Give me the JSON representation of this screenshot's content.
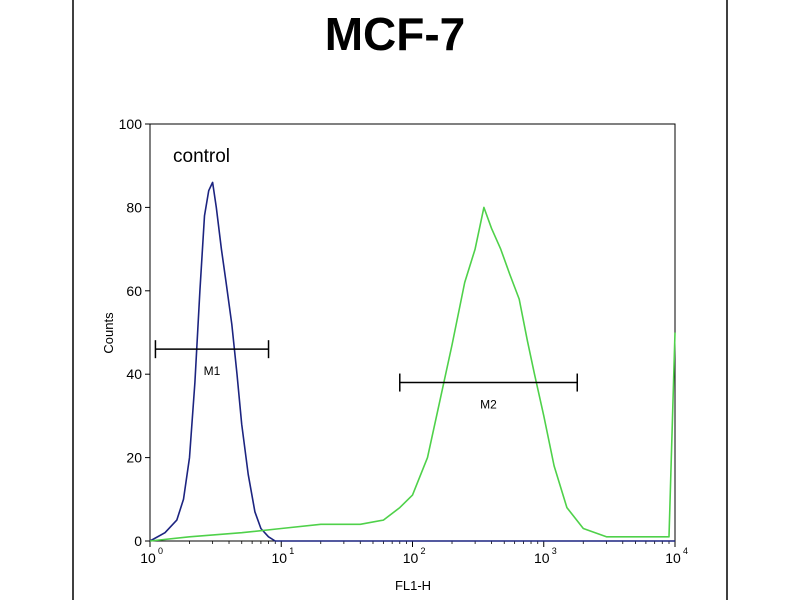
{
  "chart_data": {
    "type": "line",
    "title": "MCF-7",
    "xlabel": "FL1-H",
    "ylabel": "Counts",
    "x_scale": "log",
    "xlim": [
      1,
      10000
    ],
    "ylim": [
      0,
      100
    ],
    "x_ticks": [
      {
        "value": 1,
        "base": "10",
        "exp": "0"
      },
      {
        "value": 10,
        "base": "10",
        "exp": "1"
      },
      {
        "value": 100,
        "base": "10",
        "exp": "2"
      },
      {
        "value": 1000,
        "base": "10",
        "exp": "3"
      },
      {
        "value": 10000,
        "base": "10",
        "exp": "4"
      }
    ],
    "y_ticks": [
      0,
      20,
      40,
      60,
      80,
      100
    ],
    "annotation": "control",
    "series": [
      {
        "color": "#1c2480",
        "points": [
          [
            1.0,
            0
          ],
          [
            1.3,
            2
          ],
          [
            1.6,
            5
          ],
          [
            1.8,
            10
          ],
          [
            2.0,
            20
          ],
          [
            2.2,
            38
          ],
          [
            2.4,
            60
          ],
          [
            2.6,
            78
          ],
          [
            2.8,
            84
          ],
          [
            3.0,
            86
          ],
          [
            3.2,
            80
          ],
          [
            3.5,
            70
          ],
          [
            3.8,
            62
          ],
          [
            4.2,
            52
          ],
          [
            4.6,
            40
          ],
          [
            5.0,
            28
          ],
          [
            5.6,
            16
          ],
          [
            6.3,
            7
          ],
          [
            7.0,
            3
          ],
          [
            8.0,
            1
          ],
          [
            9.0,
            0
          ],
          [
            20,
            0
          ],
          [
            100,
            0
          ],
          [
            1000,
            0
          ],
          [
            10000,
            0
          ]
        ]
      },
      {
        "color": "#4fd14a",
        "points": [
          [
            1.0,
            0
          ],
          [
            2.0,
            1
          ],
          [
            5.0,
            2
          ],
          [
            10,
            3
          ],
          [
            20,
            4
          ],
          [
            40,
            4
          ],
          [
            60,
            5
          ],
          [
            80,
            8
          ],
          [
            100,
            11
          ],
          [
            130,
            20
          ],
          [
            160,
            33
          ],
          [
            200,
            47
          ],
          [
            250,
            62
          ],
          [
            300,
            70
          ],
          [
            350,
            80
          ],
          [
            400,
            75
          ],
          [
            470,
            70
          ],
          [
            550,
            64
          ],
          [
            650,
            58
          ],
          [
            750,
            48
          ],
          [
            850,
            40
          ],
          [
            1000,
            30
          ],
          [
            1200,
            18
          ],
          [
            1500,
            8
          ],
          [
            2000,
            3
          ],
          [
            3000,
            1
          ],
          [
            5000,
            1
          ],
          [
            9000,
            1
          ],
          [
            10000,
            50
          ]
        ]
      }
    ],
    "markers": [
      {
        "label": "M1",
        "x_start": 1.1,
        "x_end": 8.0,
        "y": 46
      },
      {
        "label": "M2",
        "x_start": 80,
        "x_end": 1800,
        "y": 38
      }
    ]
  }
}
